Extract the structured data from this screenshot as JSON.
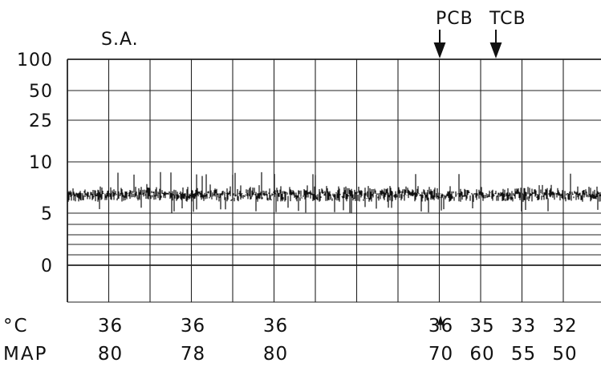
{
  "chart_data": {
    "type": "line",
    "title": "S.A.",
    "y_tick_labels": [
      "100",
      "50",
      "25",
      "10",
      "5",
      "0"
    ],
    "y_ticks": [
      100,
      50,
      25,
      10,
      5,
      0
    ],
    "trace_level": 7,
    "trace_noise_range": [
      5,
      9
    ],
    "annotations": [
      "PCB",
      "TCB"
    ],
    "rows": [
      {
        "label": "°C",
        "entries": [
          {
            "col": 1,
            "value": "36"
          },
          {
            "col": 3,
            "value": "36"
          },
          {
            "col": 5,
            "value": "36"
          },
          {
            "col": 9,
            "value": "36"
          },
          {
            "col": 10,
            "value": "35"
          },
          {
            "col": 11,
            "value": "33"
          },
          {
            "col": 12,
            "value": "32"
          }
        ]
      },
      {
        "label": "MAP",
        "entries": [
          {
            "col": 1,
            "value": "80"
          },
          {
            "col": 3,
            "value": "78"
          },
          {
            "col": 5,
            "value": "80"
          },
          {
            "col": 9,
            "value": "70"
          },
          {
            "col": 10,
            "value": "60"
          },
          {
            "col": 11,
            "value": "55"
          },
          {
            "col": 12,
            "value": "50"
          }
        ]
      }
    ],
    "grid": true,
    "colors": {
      "ink": "#111111",
      "grid": "#222222",
      "paper": "#ffffff"
    }
  }
}
